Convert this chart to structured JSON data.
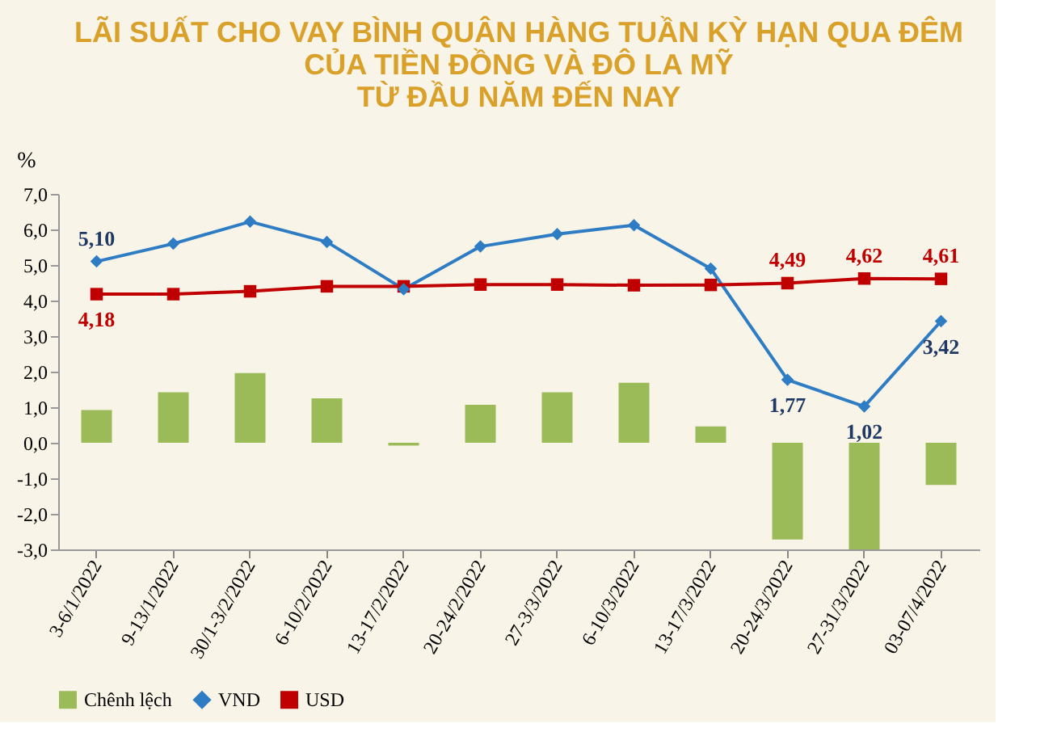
{
  "chart_data": {
    "type": "bar",
    "title": "LÃI SUẤT CHO VAY BÌNH QUÂN HÀNG TUẦN KỲ HẠN QUA ĐÊM\nCỦA TIỀN ĐỒNG VÀ ĐÔ LA MỸ\nTỪ ĐẦU NĂM ĐẾN NAY",
    "ylabel": "%",
    "categories": [
      "3-6/1/2022",
      "9-13/1/2022",
      "30/1-3/2/2022",
      "6-10/2/2022",
      "13-17/2/2022",
      "20-24/2/2022",
      "27-3/3/2022",
      "6-10/3/2022",
      "13-17/3/2022",
      "20-24/3/2022",
      "27-31/3/2022",
      "03-07/4/2022"
    ],
    "series": [
      {
        "name": "Chênh lệch",
        "color": "#9bbb59",
        "values": [
          0.92,
          1.42,
          1.96,
          1.25,
          -0.08,
          1.07,
          1.42,
          1.69,
          0.46,
          -2.72,
          -3.0,
          -1.19
        ]
      },
      {
        "name": "VND",
        "type": "line",
        "color": "#2e7cc4",
        "marker": "diamond",
        "values": [
          5.1,
          5.6,
          6.22,
          5.65,
          4.32,
          5.52,
          5.87,
          6.12,
          4.9,
          1.77,
          1.02,
          3.42
        ],
        "value_labels": [
          "5,10",
          null,
          null,
          null,
          null,
          null,
          null,
          null,
          null,
          "1,77",
          "1,02",
          "3,42"
        ]
      },
      {
        "name": "USD",
        "type": "line",
        "color": "#c00000",
        "marker": "square",
        "values": [
          4.18,
          4.18,
          4.26,
          4.4,
          4.4,
          4.45,
          4.45,
          4.43,
          4.44,
          4.49,
          4.62,
          4.61
        ],
        "value_labels": [
          "4,18",
          null,
          null,
          null,
          null,
          null,
          null,
          null,
          null,
          "4,49",
          "4,62",
          "4,61"
        ]
      }
    ],
    "ylim": [
      -3.0,
      7.0
    ],
    "yticks": [
      {
        "value": -3,
        "label": "-3,0"
      },
      {
        "value": -2,
        "label": "-2,0"
      },
      {
        "value": -1,
        "label": "-1,0"
      },
      {
        "value": 0,
        "label": "0,0"
      },
      {
        "value": 1,
        "label": "1,0"
      },
      {
        "value": 2,
        "label": "2,0"
      },
      {
        "value": 3,
        "label": "3,0"
      },
      {
        "value": 4,
        "label": "4,0"
      },
      {
        "value": 5,
        "label": "5,0"
      },
      {
        "value": 6,
        "label": "6,0"
      },
      {
        "value": 7,
        "label": "7,0"
      }
    ],
    "grid": false,
    "legend": "bottom"
  }
}
